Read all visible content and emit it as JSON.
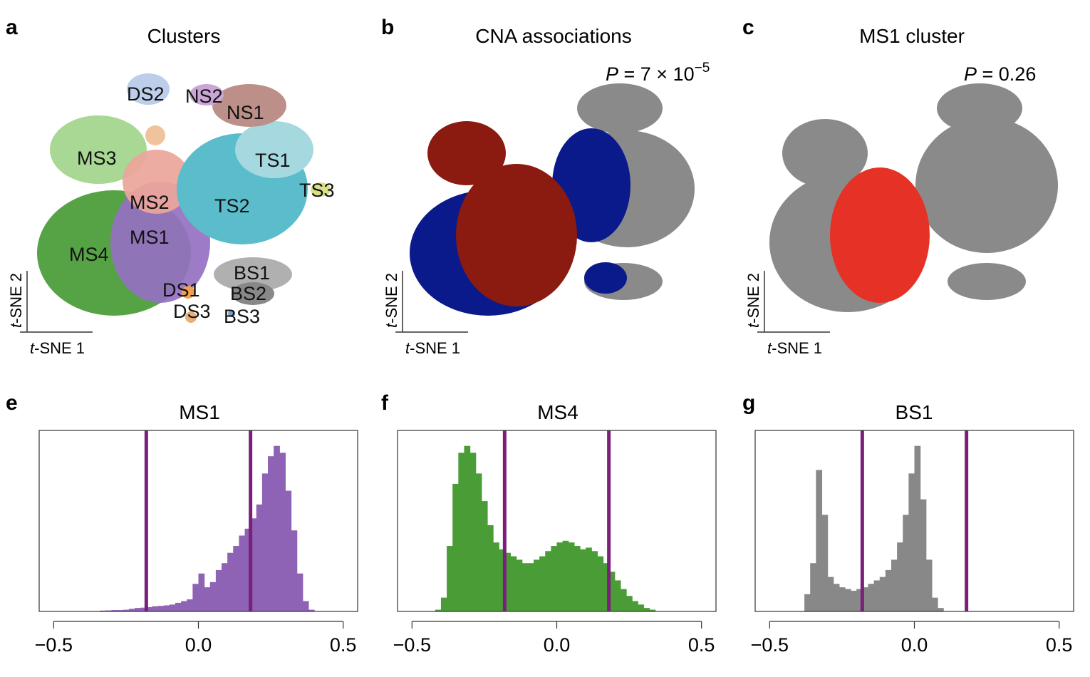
{
  "panels": {
    "a": {
      "letter": "a",
      "title": "Clusters"
    },
    "b": {
      "letter": "b",
      "title": "CNA associations",
      "p_prefix": "P",
      "p_value": " = 7 × 10",
      "p_exp": "−5"
    },
    "c": {
      "letter": "c",
      "title": "MS1 cluster",
      "p_prefix": "P",
      "p_value": " = 0.26"
    },
    "e": {
      "letter": "e",
      "title": "MS1"
    },
    "f": {
      "letter": "f",
      "title": "MS4"
    },
    "g": {
      "letter": "g",
      "title": "BS1"
    }
  },
  "tsne_axes": {
    "x_label_italic": "t",
    "x_label_rest": "-SNE 1",
    "y_label_italic": "t",
    "y_label_rest": "-SNE 2"
  },
  "clusters": [
    {
      "name": "DS2",
      "color": "#9fb9e0"
    },
    {
      "name": "NS2",
      "color": "#c9a6d6"
    },
    {
      "name": "NS1",
      "color": "#bc8f88"
    },
    {
      "name": "MS3",
      "color": "#a3d68d"
    },
    {
      "name": "TS1",
      "color": "#a6d8e0"
    },
    {
      "name": "TS3",
      "color": "#d9e08a"
    },
    {
      "name": "MS2",
      "color": "#eba59a"
    },
    {
      "name": "TS2",
      "color": "#5bbccc"
    },
    {
      "name": "MS1",
      "color": "#9570c2"
    },
    {
      "name": "MS4",
      "color": "#4d9e3c"
    },
    {
      "name": "BS1",
      "color": "#b0b0b0"
    },
    {
      "name": "DS1",
      "color": "#f0a050"
    },
    {
      "name": "BS2",
      "color": "#888888"
    },
    {
      "name": "DS3",
      "color": "#e08a3a"
    },
    {
      "name": "BS3",
      "color": "#7aa0c8"
    }
  ],
  "colors": {
    "ms1": "#8e62b4",
    "ms4": "#4a9c37",
    "bs1": "#888888",
    "threshold": "#7a1f7a",
    "positive": "#8b1a10",
    "negative": "#0a1a8a",
    "neutral": "#8a8a8a",
    "highlight": "#e63226"
  },
  "chart_data": [
    {
      "type": "histogram",
      "title": "MS1",
      "xlim": [
        -0.55,
        0.55
      ],
      "xticks": [
        -0.5,
        0.0,
        0.5
      ],
      "xtick_labels": [
        "−0.5",
        "0.0",
        "0.5"
      ],
      "thresholds": [
        -0.18,
        0.18
      ],
      "bin_width": 0.02,
      "bins_start": -0.34,
      "values": [
        0.5,
        0.6,
        0.8,
        0.8,
        1.0,
        1.5,
        2.0,
        2.2,
        2.5,
        3.0,
        3.2,
        3.5,
        4.0,
        5.0,
        6.0,
        7.0,
        16.0,
        22.0,
        14.0,
        17.0,
        24.0,
        28.0,
        34.0,
        38.0,
        44.0,
        48.0,
        54.0,
        62.0,
        80.0,
        90.0,
        96.0,
        92.0,
        70.0,
        47.0,
        22.0,
        6.0,
        1.0,
        0.2,
        0.0,
        0.0,
        0.0
      ]
    },
    {
      "type": "histogram",
      "title": "MS4",
      "xlim": [
        -0.55,
        0.55
      ],
      "xticks": [
        -0.5,
        0.0,
        0.5
      ],
      "xtick_labels": [
        "−0.5",
        "0.0",
        "0.5"
      ],
      "thresholds": [
        -0.18,
        0.18
      ],
      "bin_width": 0.02,
      "bins_start": -0.42,
      "values": [
        1,
        8,
        38,
        74,
        92,
        96,
        92,
        80,
        64,
        50,
        40,
        36,
        34,
        32,
        30,
        28,
        28,
        30,
        32,
        35,
        38,
        40,
        41,
        40,
        38,
        36,
        37,
        35,
        32,
        28,
        23,
        18,
        13,
        9,
        6,
        4,
        2,
        1,
        0,
        0,
        0,
        0
      ]
    },
    {
      "type": "histogram",
      "title": "BS1",
      "xlim": [
        -0.55,
        0.55
      ],
      "xticks": [
        -0.5,
        0.0,
        0.5
      ],
      "xtick_labels": [
        "−0.5",
        "0.0",
        "0.5"
      ],
      "thresholds": [
        -0.18,
        0.18
      ],
      "bin_width": 0.02,
      "bins_start": -0.38,
      "values": [
        10,
        28,
        82,
        56,
        20,
        16,
        14,
        13,
        12,
        13,
        14,
        16,
        18,
        20,
        24,
        30,
        40,
        56,
        80,
        96,
        65,
        30,
        8,
        2,
        0,
        0,
        0,
        0,
        0,
        0,
        0,
        0,
        0
      ]
    }
  ]
}
